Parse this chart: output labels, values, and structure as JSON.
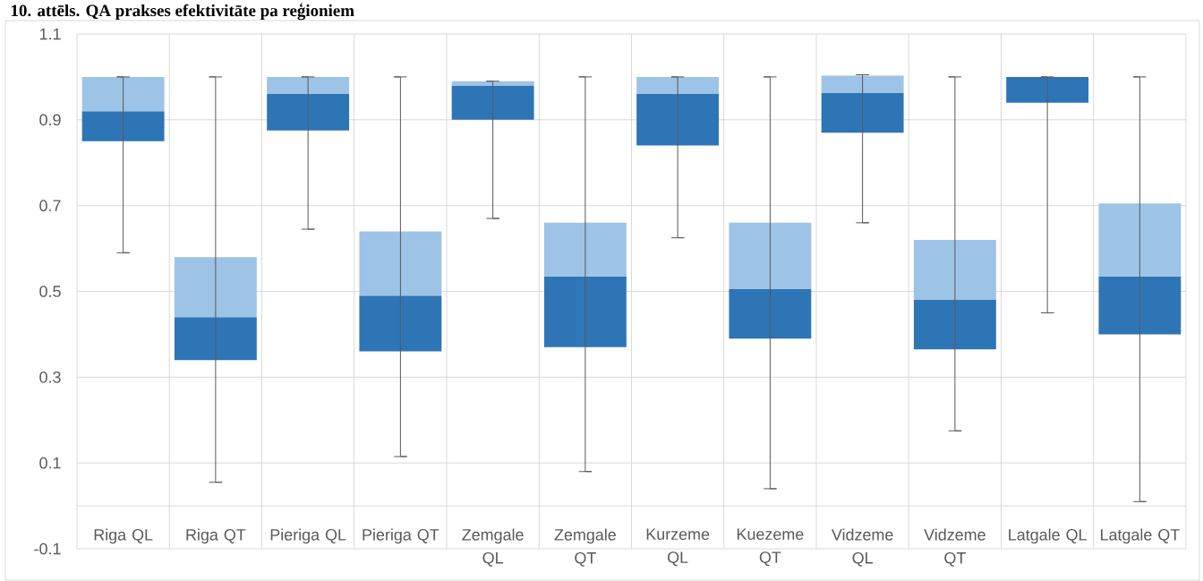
{
  "chart_data": {
    "type": "box",
    "title": "10. attēls. QA prakses efektivitāte pa reģioniem",
    "categories": [
      "Riga QL",
      "Riga QT",
      "Pieriga QL",
      "Pieriga QT",
      "Zemgale QL",
      "Zemgale QT",
      "Kurzeme QL",
      "Kuezeme QT",
      "Vidzeme QL",
      "Vidzeme QT",
      "Latgale QL",
      "Latgale QT"
    ],
    "boxes": [
      {
        "low": 0.59,
        "q1": 0.85,
        "median": 0.92,
        "q3": 1.0,
        "high": 1.0
      },
      {
        "low": 0.055,
        "q1": 0.34,
        "median": 0.44,
        "q3": 0.58,
        "high": 1.0
      },
      {
        "low": 0.645,
        "q1": 0.875,
        "median": 0.96,
        "q3": 1.0,
        "high": 1.0
      },
      {
        "low": 0.115,
        "q1": 0.36,
        "median": 0.49,
        "q3": 0.64,
        "high": 1.0
      },
      {
        "low": 0.67,
        "q1": 0.9,
        "median": 0.98,
        "q3": 0.99,
        "high": 0.99
      },
      {
        "low": 0.08,
        "q1": 0.37,
        "median": 0.535,
        "q3": 0.66,
        "high": 1.0
      },
      {
        "low": 0.625,
        "q1": 0.84,
        "median": 0.96,
        "q3": 1.0,
        "high": 1.0
      },
      {
        "low": 0.04,
        "q1": 0.39,
        "median": 0.505,
        "q3": 0.66,
        "high": 1.0
      },
      {
        "low": 0.66,
        "q1": 0.87,
        "median": 0.962,
        "q3": 1.003,
        "high": 1.005
      },
      {
        "low": 0.175,
        "q1": 0.365,
        "median": 0.48,
        "q3": 0.62,
        "high": 1.0
      },
      {
        "low": 0.45,
        "q1": 0.94,
        "median": 1.0,
        "q3": 1.0,
        "high": 1.0
      },
      {
        "low": 0.01,
        "q1": 0.4,
        "median": 0.535,
        "q3": 0.705,
        "high": 1.0
      }
    ],
    "colors": [
      "#2e75b6",
      "#2e75b6",
      "#2e75b6",
      "#2e75b6",
      "#2e75b6",
      "#2e75b6",
      "#2e75b6",
      "#2e75b6",
      "#2e75b6",
      "#2e75b6",
      "#2e75b6",
      "#2e75b6"
    ],
    "color": "#9dc3e6",
    "ylim": [
      -0.1,
      1.1
    ],
    "yticks": [
      -0.1,
      0.1,
      0.3,
      0.5,
      0.7,
      0.9,
      1.1
    ],
    "grid": true
  }
}
